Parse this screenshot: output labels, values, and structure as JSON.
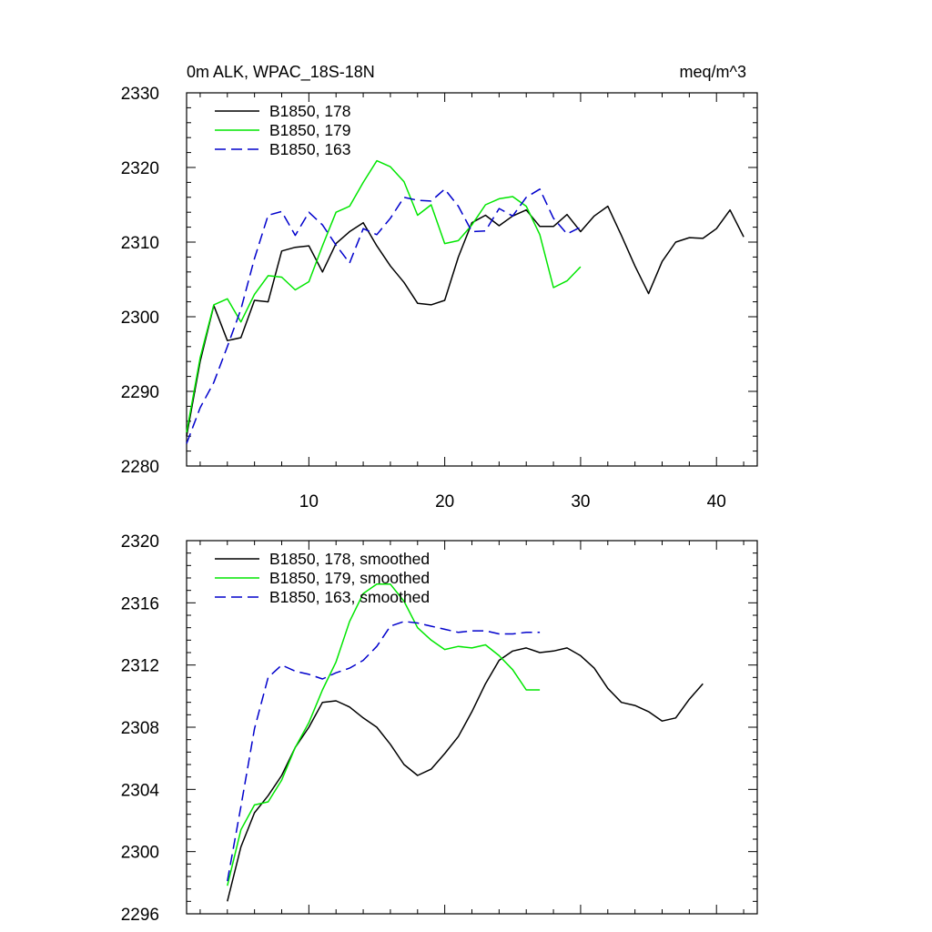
{
  "chart_data": [
    {
      "type": "line",
      "title": "0m ALK, WPAC_18S-18N",
      "units": "meq/m^3",
      "xlabel": "",
      "ylabel": "",
      "xlim": [
        1,
        43
      ],
      "ylim": [
        2280,
        2330
      ],
      "xticks": [
        10,
        20,
        30,
        40
      ],
      "yticks": [
        2280,
        2290,
        2300,
        2310,
        2320,
        2330
      ],
      "legend": "top-left",
      "grid": false,
      "series": [
        {
          "name": "B1850, 178",
          "color": "#000000",
          "dash": "solid",
          "x": [
            1,
            2,
            3,
            4,
            5,
            6,
            7,
            8,
            9,
            10,
            11,
            12,
            13,
            14,
            15,
            16,
            17,
            18,
            19,
            20,
            21,
            22,
            23,
            24,
            25,
            26,
            27,
            28,
            29,
            30,
            31,
            32,
            33,
            34,
            35,
            36,
            37,
            38,
            39,
            40,
            41,
            42
          ],
          "y": [
            2284,
            2294,
            2301.5,
            2296.8,
            2297.2,
            2302.2,
            2302,
            2308.8,
            2309.3,
            2309.5,
            2306,
            2309.8,
            2311.4,
            2312.6,
            2309.5,
            2306.8,
            2304.6,
            2301.8,
            2301.6,
            2302.2,
            2308,
            2312.6,
            2313.6,
            2312.2,
            2313.5,
            2314.3,
            2312.1,
            2312.1,
            2313.7,
            2311.4,
            2313.5,
            2314.8,
            2310.9,
            2306.8,
            2303.1,
            2307.4,
            2310,
            2310.6,
            2310.5,
            2311.8,
            2314.3,
            2310.7
          ]
        },
        {
          "name": "B1850, 179",
          "color": "#00e600",
          "dash": "solid",
          "x": [
            1,
            2,
            3,
            4,
            5,
            6,
            7,
            8,
            9,
            10,
            11,
            12,
            13,
            14,
            15,
            16,
            17,
            18,
            19,
            20,
            21,
            22,
            23,
            24,
            25,
            26,
            27,
            28,
            29,
            30
          ],
          "y": [
            2284.5,
            2294.5,
            2301.6,
            2302.4,
            2299.3,
            2303,
            2305.5,
            2305.3,
            2303.6,
            2304.7,
            2309.5,
            2314,
            2314.8,
            2318,
            2320.9,
            2320.1,
            2318.1,
            2313.6,
            2315,
            2309.8,
            2310.2,
            2312.3,
            2315,
            2315.8,
            2316.1,
            2314.8,
            2311,
            2303.9,
            2304.8,
            2306.7
          ]
        },
        {
          "name": "B1850, 163",
          "color": "#0000cc",
          "dash": "dashed",
          "x": [
            1,
            2,
            3,
            4,
            5,
            6,
            7,
            8,
            9,
            10,
            11,
            12,
            13,
            14,
            15,
            16,
            17,
            18,
            19,
            20,
            21,
            22,
            23,
            24,
            25,
            26,
            27,
            28,
            29,
            30
          ],
          "y": [
            2283,
            2287.8,
            2291.2,
            2296,
            2301,
            2307.8,
            2313.6,
            2314.1,
            2310.9,
            2314,
            2312.3,
            2309.6,
            2307.2,
            2311.8,
            2311,
            2313.2,
            2316,
            2315.6,
            2315.5,
            2317.1,
            2314.8,
            2311.4,
            2311.5,
            2314.5,
            2313.5,
            2316,
            2317.1,
            2313.2,
            2311.1,
            2312
          ]
        }
      ]
    },
    {
      "type": "line",
      "title": "",
      "xlabel": "",
      "ylabel": "",
      "xlim": [
        1,
        43
      ],
      "ylim": [
        2296,
        2320
      ],
      "xticks": [
        10,
        20,
        30,
        40
      ],
      "yticks": [
        2296,
        2300,
        2304,
        2308,
        2312,
        2316,
        2320
      ],
      "legend": "top-left",
      "grid": false,
      "series": [
        {
          "name": "B1850, 178, smoothed",
          "color": "#000000",
          "dash": "solid",
          "x": [
            4,
            5,
            6,
            7,
            8,
            9,
            10,
            11,
            12,
            13,
            14,
            15,
            16,
            17,
            18,
            19,
            20,
            21,
            22,
            23,
            24,
            25,
            26,
            27,
            28,
            29,
            30,
            31,
            32,
            33,
            34,
            35,
            36,
            37,
            38,
            39
          ],
          "y": [
            2296.8,
            2300.3,
            2302.5,
            2303.6,
            2304.9,
            2306.7,
            2308,
            2309.6,
            2309.7,
            2309.3,
            2308.6,
            2308,
            2306.9,
            2305.6,
            2304.9,
            2305.3,
            2306.3,
            2307.4,
            2309,
            2310.8,
            2312.3,
            2312.9,
            2313.1,
            2312.8,
            2312.9,
            2313.1,
            2312.6,
            2311.8,
            2310.5,
            2309.6,
            2309.4,
            2309,
            2308.4,
            2308.6,
            2309.8,
            2310.8
          ]
        },
        {
          "name": "B1850, 179, smoothed",
          "color": "#00e600",
          "dash": "solid",
          "x": [
            4,
            5,
            6,
            7,
            8,
            9,
            10,
            11,
            12,
            13,
            14,
            15,
            16,
            17,
            18,
            19,
            20,
            21,
            22,
            23,
            24,
            25,
            26,
            27
          ],
          "y": [
            2297.8,
            2301.4,
            2303,
            2303.2,
            2304.6,
            2306.7,
            2308.3,
            2310.4,
            2312.2,
            2314.8,
            2316.6,
            2317.2,
            2317.2,
            2316.1,
            2314.4,
            2313.6,
            2313,
            2313.2,
            2313.1,
            2313.3,
            2312.6,
            2311.7,
            2310.4,
            2310.4
          ]
        },
        {
          "name": "B1850, 163, smoothed",
          "color": "#0000cc",
          "dash": "dashed",
          "x": [
            4,
            5,
            6,
            7,
            8,
            9,
            10,
            11,
            12,
            13,
            14,
            15,
            16,
            17,
            18,
            19,
            20,
            21,
            22,
            23,
            24,
            25,
            26,
            27
          ],
          "y": [
            2298.1,
            2302.9,
            2307.9,
            2311.2,
            2312,
            2311.6,
            2311.4,
            2311.1,
            2311.5,
            2311.8,
            2312.3,
            2313.2,
            2314.5,
            2314.8,
            2314.7,
            2314.5,
            2314.3,
            2314.1,
            2314.2,
            2314.2,
            2314,
            2314,
            2314.1,
            2314.1
          ]
        }
      ]
    }
  ]
}
